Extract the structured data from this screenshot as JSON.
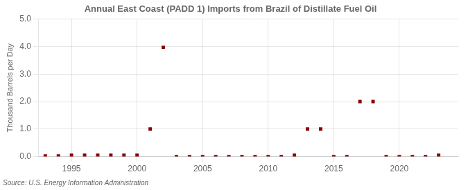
{
  "chart_data": {
    "type": "scatter",
    "title": "Annual East Coast (PADD 1) Imports from Brazil of Distillate Fuel Oil",
    "ylabel": "Thousand Barrels per Day",
    "annotation": "Source: U.S. Energy Information Administration",
    "x": [
      1993,
      1994,
      1995,
      1996,
      1997,
      1998,
      1999,
      2000,
      2001,
      2002,
      2003,
      2004,
      2005,
      2006,
      2007,
      2008,
      2009,
      2010,
      2011,
      2012,
      2013,
      2014,
      2015,
      2016,
      2017,
      2018,
      2019,
      2020,
      2021,
      2022,
      2023
    ],
    "values": [
      0.02,
      0.02,
      0.05,
      0.05,
      0.05,
      0.05,
      0.05,
      0.05,
      1.0,
      3.97,
      0.0,
      0.0,
      0.0,
      0.0,
      0.0,
      0.0,
      0.0,
      0.0,
      0.0,
      0.05,
      1.0,
      1.0,
      0.0,
      0.0,
      2.0,
      2.0,
      0.0,
      0.0,
      0.0,
      0.0,
      0.05
    ],
    "color": "#8b0000",
    "marker": "square",
    "xlim": [
      1992.5,
      2024.5
    ],
    "ylim": [
      0.0,
      5.0
    ],
    "xticks": [
      1995,
      2000,
      2005,
      2010,
      2015,
      2020
    ],
    "yticks": [
      {
        "value": 0.0,
        "label": "0.0"
      },
      {
        "value": 1.0,
        "label": "1.0"
      },
      {
        "value": 2.0,
        "label": "2.0"
      },
      {
        "value": 3.0,
        "label": "3.0"
      },
      {
        "value": 4.0,
        "label": "4.0"
      },
      {
        "value": 5.0,
        "label": "5.0"
      }
    ],
    "grid": true
  }
}
